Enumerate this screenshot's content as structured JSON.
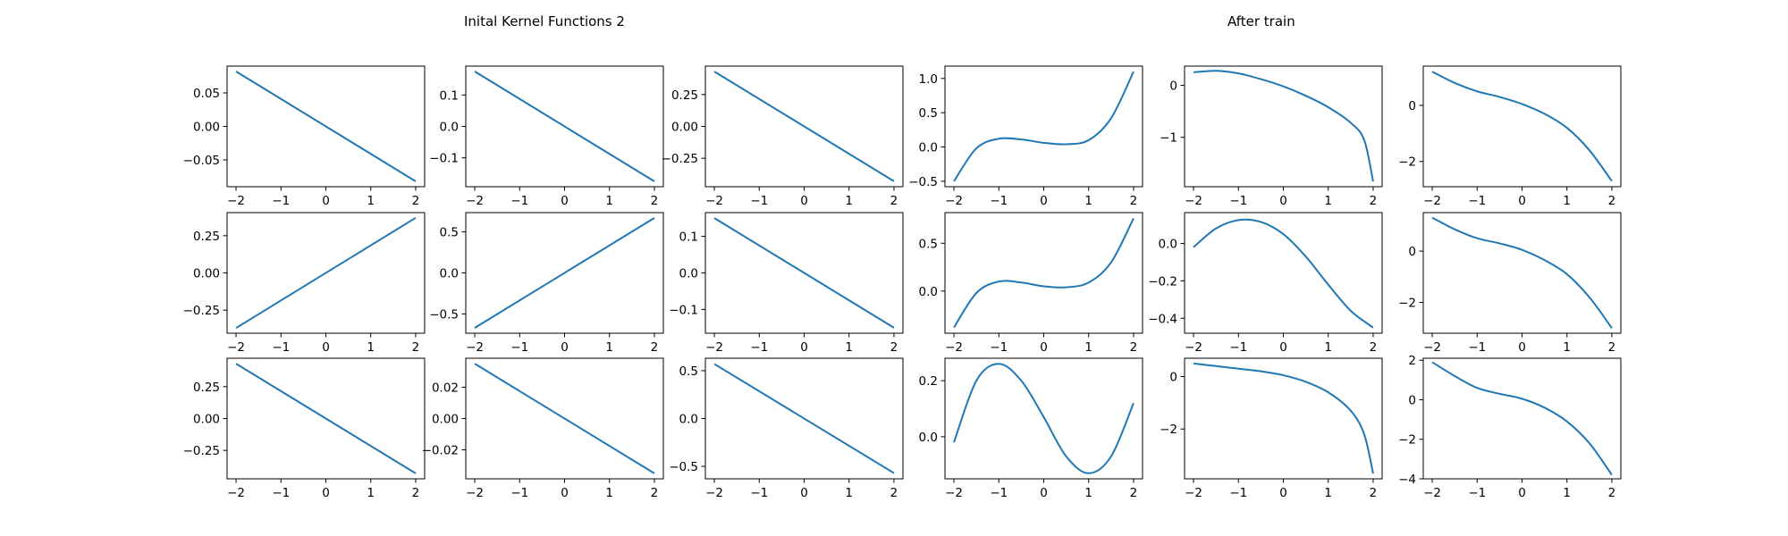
{
  "titles": {
    "left": "Inital Kernel Functions 2",
    "right": "After train"
  },
  "colors": {
    "line": "#1f77b4",
    "axes": "#000000",
    "background": "#ffffff"
  },
  "chart_data": [
    {
      "row": 0,
      "col": 0,
      "type": "line",
      "x": [
        -2,
        2
      ],
      "y": [
        0.082,
        -0.082
      ],
      "xlim": [
        -2.2,
        2.2
      ],
      "ylim": [
        -0.09,
        0.09
      ],
      "xticks": [
        "−2",
        "−1",
        "0",
        "1",
        "2"
      ],
      "yticks": [
        {
          "v": 0.05,
          "label": "0.05"
        },
        {
          "v": 0,
          "label": "0.00"
        },
        {
          "v": -0.05,
          "label": "−0.05"
        }
      ]
    },
    {
      "row": 0,
      "col": 1,
      "type": "line",
      "x": [
        -2,
        2
      ],
      "y": [
        0.175,
        -0.175
      ],
      "xlim": [
        -2.2,
        2.2
      ],
      "ylim": [
        -0.192,
        0.192
      ],
      "xticks": [
        "−2",
        "−1",
        "0",
        "1",
        "2"
      ],
      "yticks": [
        {
          "v": 0.1,
          "label": "0.1"
        },
        {
          "v": 0,
          "label": "0.0"
        },
        {
          "v": -0.1,
          "label": "−0.1"
        }
      ]
    },
    {
      "row": 0,
      "col": 2,
      "type": "line",
      "x": [
        -2,
        2
      ],
      "y": [
        0.43,
        -0.43
      ],
      "xlim": [
        -2.2,
        2.2
      ],
      "ylim": [
        -0.473,
        0.473
      ],
      "xticks": [
        "−2",
        "−1",
        "0",
        "1",
        "2"
      ],
      "yticks": [
        {
          "v": 0.25,
          "label": "0.25"
        },
        {
          "v": 0,
          "label": "0.00"
        },
        {
          "v": -0.25,
          "label": "−0.25"
        }
      ]
    },
    {
      "row": 0,
      "col": 3,
      "type": "line",
      "x": [
        -2,
        -1.5,
        -1,
        -0.5,
        0,
        0.5,
        1,
        1.5,
        2
      ],
      "y": [
        -0.5,
        -0.02,
        0.12,
        0.11,
        0.06,
        0.04,
        0.1,
        0.42,
        1.1
      ],
      "xlim": [
        -2.2,
        2.2
      ],
      "ylim": [
        -0.58,
        1.18
      ],
      "xticks": [
        "−2",
        "−1",
        "0",
        "1",
        "2"
      ],
      "yticks": [
        {
          "v": 1.0,
          "label": "1.0"
        },
        {
          "v": 0.5,
          "label": "0.5"
        },
        {
          "v": 0,
          "label": "0.0"
        },
        {
          "v": -0.5,
          "label": "−0.5"
        }
      ]
    },
    {
      "row": 0,
      "col": 4,
      "type": "line",
      "x": [
        -2,
        -1.5,
        -1,
        -0.5,
        0,
        0.5,
        1,
        1.5,
        1.8,
        2
      ],
      "y": [
        0.25,
        0.28,
        0.23,
        0.12,
        -0.02,
        -0.2,
        -0.42,
        -0.72,
        -1.05,
        -1.85
      ],
      "xlim": [
        -2.2,
        2.2
      ],
      "ylim": [
        -1.95,
        0.37
      ],
      "xticks": [
        "−2",
        "−1",
        "0",
        "1",
        "2"
      ],
      "yticks": [
        {
          "v": 0,
          "label": "0"
        },
        {
          "v": -1,
          "label": "−1"
        }
      ]
    },
    {
      "row": 0,
      "col": 5,
      "type": "line",
      "x": [
        -2,
        -1.5,
        -1,
        -0.5,
        0,
        0.5,
        1,
        1.5,
        2
      ],
      "y": [
        1.2,
        0.8,
        0.5,
        0.3,
        0.05,
        -0.3,
        -0.8,
        -1.6,
        -2.7
      ],
      "xlim": [
        -2.2,
        2.2
      ],
      "ylim": [
        -2.9,
        1.4
      ],
      "xticks": [
        "−2",
        "−1",
        "0",
        "1",
        "2"
      ],
      "yticks": [
        {
          "v": 0,
          "label": "0"
        },
        {
          "v": -2,
          "label": "−2"
        }
      ]
    },
    {
      "row": 1,
      "col": 0,
      "type": "line",
      "x": [
        -2,
        2
      ],
      "y": [
        -0.37,
        0.37
      ],
      "xlim": [
        -2.2,
        2.2
      ],
      "ylim": [
        -0.405,
        0.405
      ],
      "xticks": [
        "−2",
        "−1",
        "0",
        "1",
        "2"
      ],
      "yticks": [
        {
          "v": 0.25,
          "label": "0.25"
        },
        {
          "v": 0,
          "label": "0.00"
        },
        {
          "v": -0.25,
          "label": "−0.25"
        }
      ]
    },
    {
      "row": 1,
      "col": 1,
      "type": "line",
      "x": [
        -2,
        2
      ],
      "y": [
        -0.67,
        0.67
      ],
      "xlim": [
        -2.2,
        2.2
      ],
      "ylim": [
        -0.735,
        0.735
      ],
      "xticks": [
        "−2",
        "−1",
        "0",
        "1",
        "2"
      ],
      "yticks": [
        {
          "v": 0.5,
          "label": "0.5"
        },
        {
          "v": 0,
          "label": "0.0"
        },
        {
          "v": -0.5,
          "label": "−0.5"
        }
      ]
    },
    {
      "row": 1,
      "col": 2,
      "type": "line",
      "x": [
        -2,
        2
      ],
      "y": [
        0.15,
        -0.15
      ],
      "xlim": [
        -2.2,
        2.2
      ],
      "ylim": [
        -0.165,
        0.165
      ],
      "xticks": [
        "−2",
        "−1",
        "0",
        "1",
        "2"
      ],
      "yticks": [
        {
          "v": 0.1,
          "label": "0.1"
        },
        {
          "v": 0,
          "label": "0.0"
        },
        {
          "v": -0.1,
          "label": "−0.1"
        }
      ]
    },
    {
      "row": 1,
      "col": 3,
      "type": "line",
      "x": [
        -2,
        -1.5,
        -1,
        -0.5,
        0,
        0.5,
        1,
        1.5,
        2
      ],
      "y": [
        -0.38,
        -0.02,
        0.1,
        0.09,
        0.05,
        0.04,
        0.09,
        0.3,
        0.76
      ],
      "xlim": [
        -2.2,
        2.2
      ],
      "ylim": [
        -0.44,
        0.82
      ],
      "xticks": [
        "−2",
        "−1",
        "0",
        "1",
        "2"
      ],
      "yticks": [
        {
          "v": 0.5,
          "label": "0.5"
        },
        {
          "v": 0,
          "label": "0.0"
        }
      ]
    },
    {
      "row": 1,
      "col": 4,
      "type": "line",
      "x": [
        -2,
        -1.5,
        -1,
        -0.5,
        0,
        0.5,
        1,
        1.5,
        2
      ],
      "y": [
        -0.02,
        0.08,
        0.125,
        0.115,
        0.05,
        -0.07,
        -0.22,
        -0.36,
        -0.45
      ],
      "xlim": [
        -2.2,
        2.2
      ],
      "ylim": [
        -0.48,
        0.165
      ],
      "xticks": [
        "−2",
        "−1",
        "0",
        "1",
        "2"
      ],
      "yticks": [
        {
          "v": 0,
          "label": "0.0"
        },
        {
          "v": -0.2,
          "label": "−0.2"
        },
        {
          "v": -0.4,
          "label": "−0.4"
        }
      ]
    },
    {
      "row": 1,
      "col": 5,
      "type": "line",
      "x": [
        -2,
        -1.5,
        -1,
        -0.5,
        0,
        0.5,
        1,
        1.5,
        2
      ],
      "y": [
        1.3,
        0.85,
        0.5,
        0.3,
        0.05,
        -0.35,
        -0.9,
        -1.8,
        -3.0
      ],
      "xlim": [
        -2.2,
        2.2
      ],
      "ylim": [
        -3.2,
        1.5
      ],
      "xticks": [
        "−2",
        "−1",
        "0",
        "1",
        "2"
      ],
      "yticks": [
        {
          "v": 0,
          "label": "0"
        },
        {
          "v": -2,
          "label": "−2"
        }
      ]
    },
    {
      "row": 2,
      "col": 0,
      "type": "line",
      "x": [
        -2,
        2
      ],
      "y": [
        0.43,
        -0.43
      ],
      "xlim": [
        -2.2,
        2.2
      ],
      "ylim": [
        -0.473,
        0.473
      ],
      "xticks": [
        "−2",
        "−1",
        "0",
        "1",
        "2"
      ],
      "yticks": [
        {
          "v": 0.25,
          "label": "0.25"
        },
        {
          "v": 0,
          "label": "0.00"
        },
        {
          "v": -0.25,
          "label": "−0.25"
        }
      ]
    },
    {
      "row": 2,
      "col": 1,
      "type": "line",
      "x": [
        -2,
        2
      ],
      "y": [
        0.035,
        -0.035
      ],
      "xlim": [
        -2.2,
        2.2
      ],
      "ylim": [
        -0.0385,
        0.0385
      ],
      "xticks": [
        "−2",
        "−1",
        "0",
        "1",
        "2"
      ],
      "yticks": [
        {
          "v": 0.02,
          "label": "0.02"
        },
        {
          "v": 0,
          "label": "0.00"
        },
        {
          "v": -0.02,
          "label": "−0.02"
        }
      ]
    },
    {
      "row": 2,
      "col": 2,
      "type": "line",
      "x": [
        -2,
        2
      ],
      "y": [
        0.57,
        -0.57
      ],
      "xlim": [
        -2.2,
        2.2
      ],
      "ylim": [
        -0.63,
        0.63
      ],
      "xticks": [
        "−2",
        "−1",
        "0",
        "1",
        "2"
      ],
      "yticks": [
        {
          "v": 0.5,
          "label": "0.5"
        },
        {
          "v": 0,
          "label": "0.0"
        },
        {
          "v": -0.5,
          "label": "−0.5"
        }
      ]
    },
    {
      "row": 2,
      "col": 3,
      "type": "line",
      "x": [
        -2,
        -1.5,
        -1,
        -0.5,
        0,
        0.5,
        1,
        1.5,
        2
      ],
      "y": [
        -0.02,
        0.2,
        0.26,
        0.2,
        0.07,
        -0.07,
        -0.13,
        -0.07,
        0.12
      ],
      "xlim": [
        -2.2,
        2.2
      ],
      "ylim": [
        -0.15,
        0.28
      ],
      "xticks": [
        "−2",
        "−1",
        "0",
        "1",
        "2"
      ],
      "yticks": [
        {
          "v": 0.2,
          "label": "0.2"
        },
        {
          "v": 0,
          "label": "0.0"
        }
      ]
    },
    {
      "row": 2,
      "col": 4,
      "type": "line",
      "x": [
        -2,
        -1.5,
        -1,
        -0.5,
        0,
        0.5,
        1,
        1.5,
        1.8,
        2
      ],
      "y": [
        0.5,
        0.4,
        0.3,
        0.2,
        0.05,
        -0.2,
        -0.6,
        -1.3,
        -2.2,
        -3.7
      ],
      "xlim": [
        -2.2,
        2.2
      ],
      "ylim": [
        -3.9,
        0.7
      ],
      "xticks": [
        "−2",
        "−1",
        "0",
        "1",
        "2"
      ],
      "yticks": [
        {
          "v": 0,
          "label": "0"
        },
        {
          "v": -2,
          "label": "−2"
        }
      ]
    },
    {
      "row": 2,
      "col": 5,
      "type": "line",
      "x": [
        -2,
        -1.5,
        -1,
        -0.5,
        0,
        0.5,
        1,
        1.5,
        2
      ],
      "y": [
        1.9,
        1.2,
        0.6,
        0.3,
        0.05,
        -0.4,
        -1.1,
        -2.2,
        -3.8
      ],
      "xlim": [
        -2.2,
        2.2
      ],
      "ylim": [
        -4.0,
        2.1
      ],
      "xticks": [
        "−2",
        "−1",
        "0",
        "1",
        "2"
      ],
      "yticks": [
        {
          "v": 2,
          "label": "2"
        },
        {
          "v": 0,
          "label": "0"
        },
        {
          "v": -2,
          "label": "−2"
        },
        {
          "v": -4,
          "label": "−4"
        }
      ]
    }
  ]
}
